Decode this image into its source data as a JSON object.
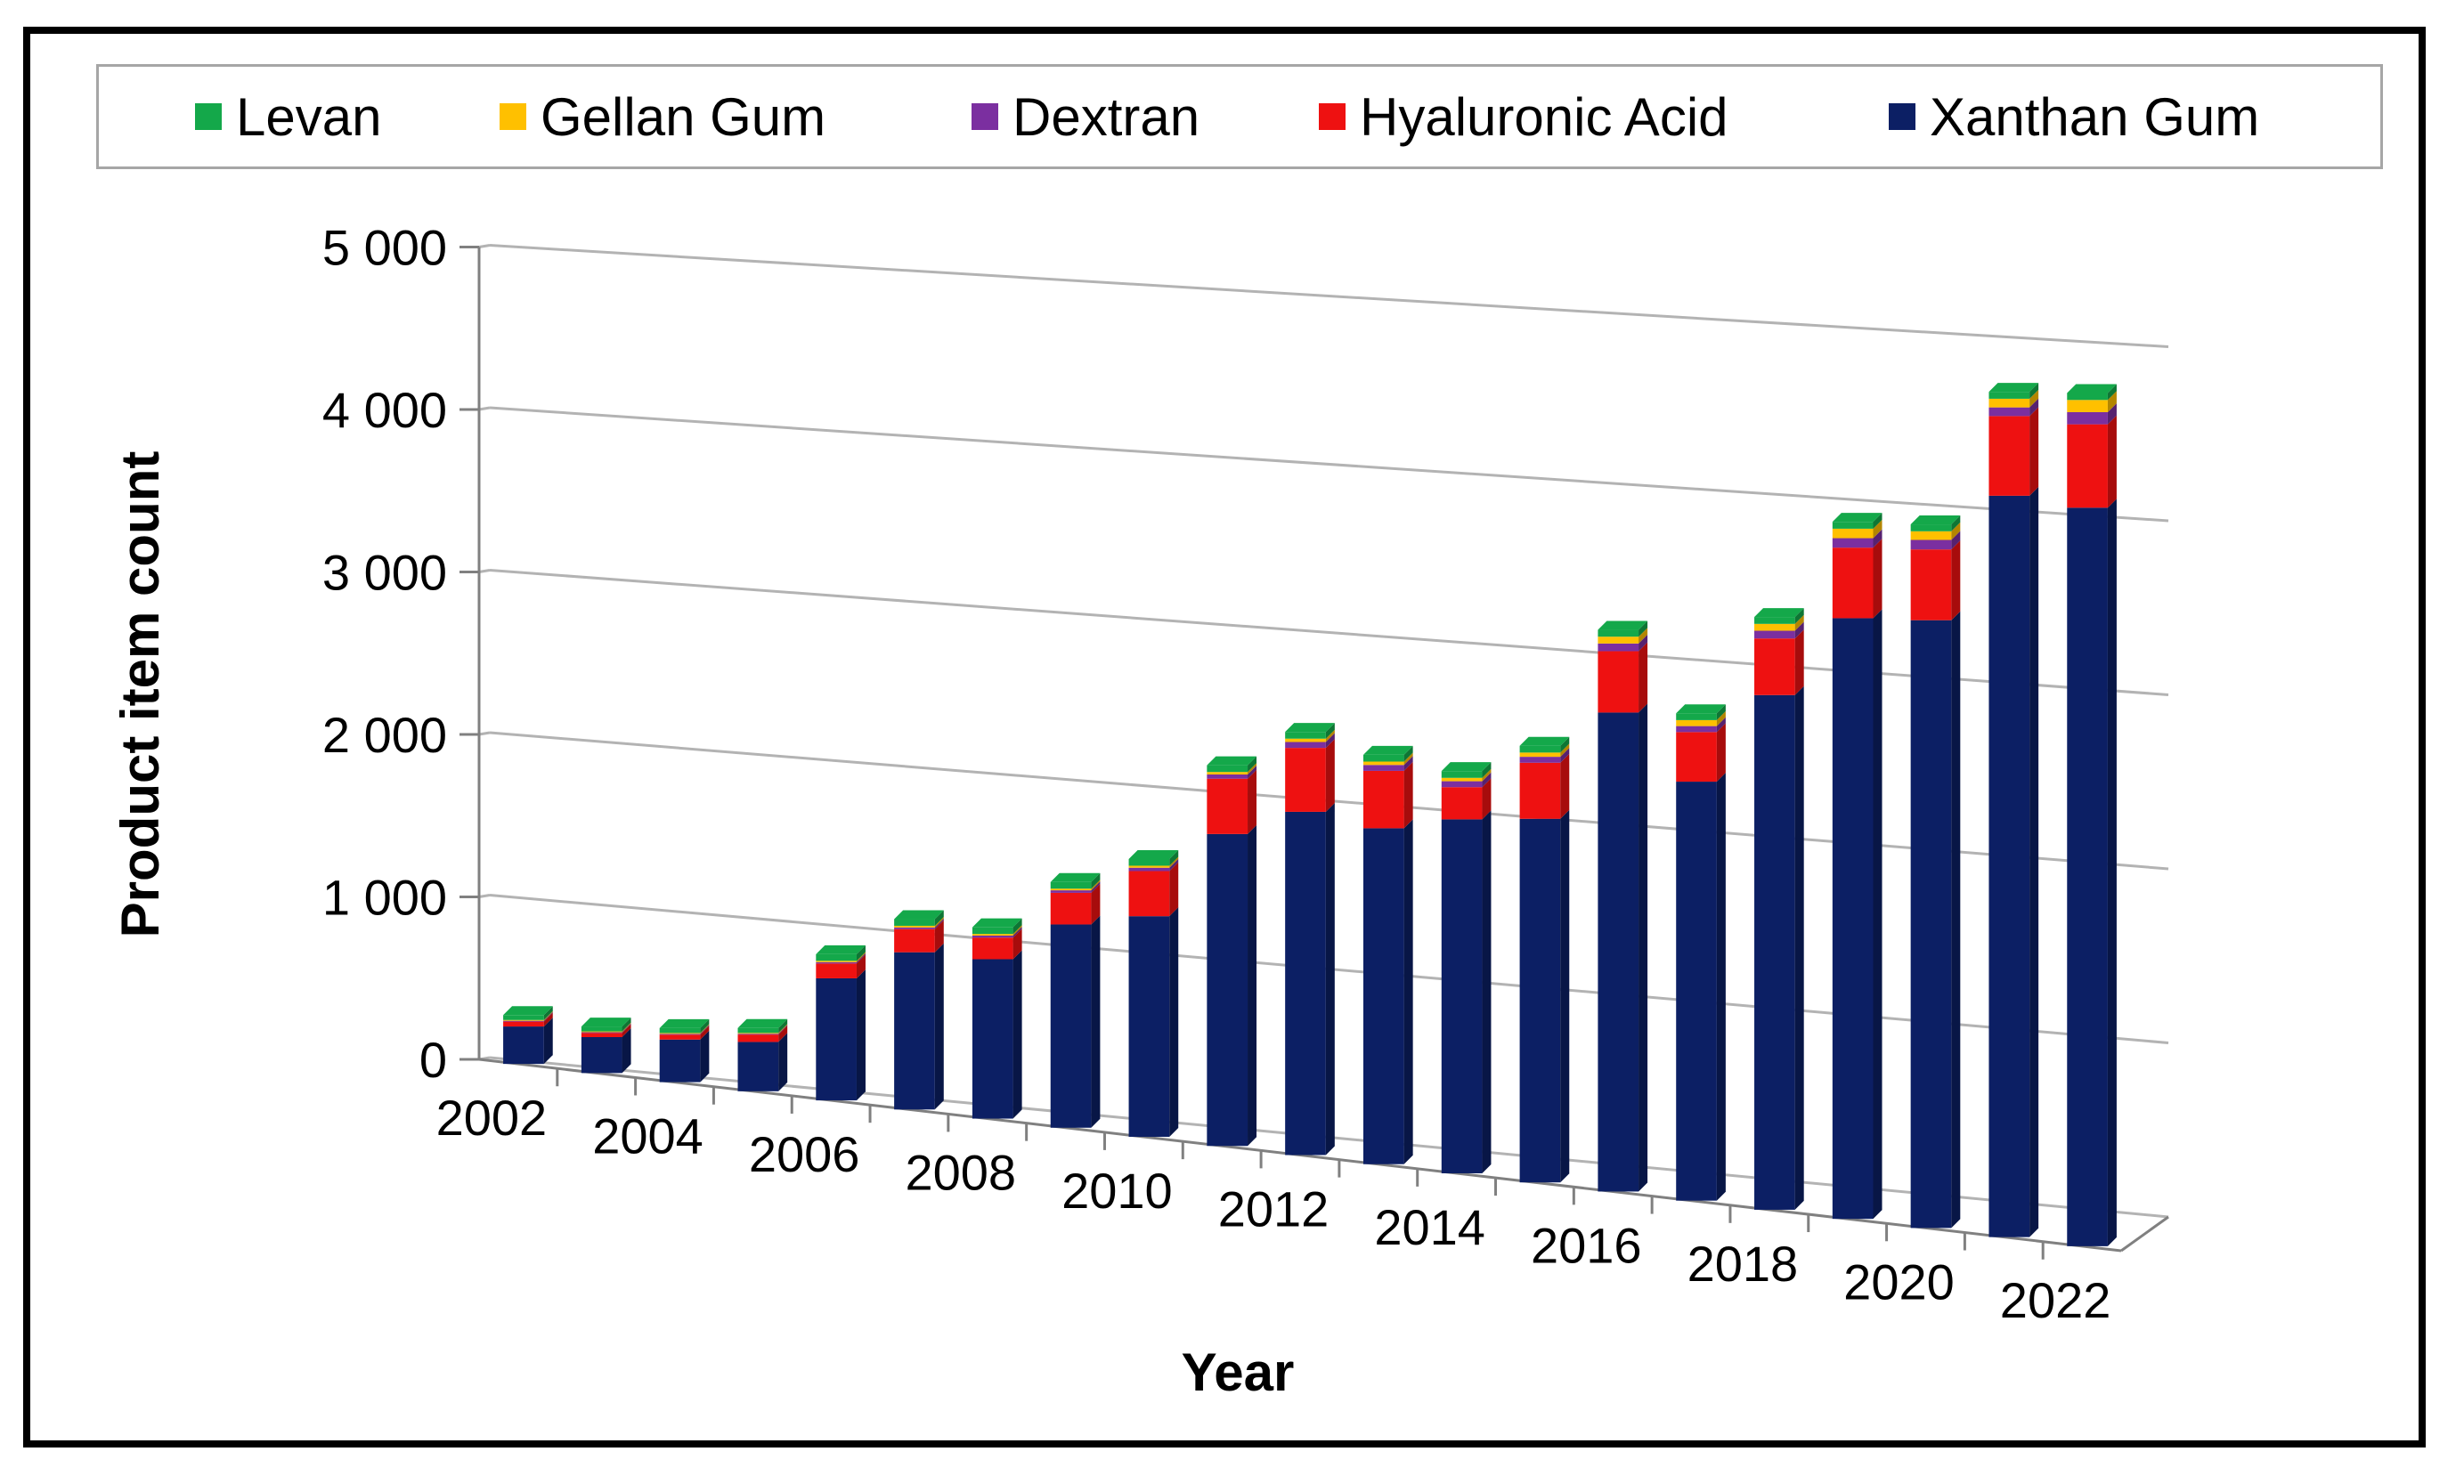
{
  "chart_data": {
    "type": "bar",
    "stacked": true,
    "style": "3d-perspective",
    "xlabel": "Year",
    "ylabel": "Product item count",
    "ylim": [
      0,
      5000
    ],
    "y_ticks": [
      0,
      1000,
      2000,
      3000,
      4000,
      5000
    ],
    "y_tick_labels": [
      "0",
      "1 000",
      "2 000",
      "3 000",
      "4 000",
      "5 000"
    ],
    "categories": [
      "2002",
      "2003",
      "2004",
      "2005",
      "2006",
      "2007",
      "2008",
      "2009",
      "2010",
      "2011",
      "2012",
      "2013",
      "2014",
      "2015",
      "2016",
      "2017",
      "2018",
      "2019",
      "2020",
      "2021",
      "2022"
    ],
    "x_tick_labels": [
      "2002",
      "2004",
      "2006",
      "2008",
      "2010",
      "2012",
      "2014",
      "2016",
      "2018",
      "2020",
      "2022"
    ],
    "legend_position": "top",
    "legend_order": [
      "Levan",
      "Gellan Gum",
      "Dextran",
      "Hyaluronic Acid",
      "Xanthan Gum"
    ],
    "series": [
      {
        "name": "Xanthan Gum",
        "color": "#0c1f64",
        "values": [
          230,
          220,
          260,
          300,
          740,
          950,
          960,
          1220,
          1320,
          1860,
          2040,
          1990,
          2090,
          2140,
          2810,
          2450,
          3000,
          3490,
          3520,
          4280,
          4250
        ]
      },
      {
        "name": "Hyaluronic Acid",
        "color": "#ee1111",
        "values": [
          30,
          25,
          30,
          45,
          90,
          140,
          130,
          190,
          270,
          330,
          380,
          340,
          190,
          330,
          360,
          290,
          330,
          410,
          410,
          460,
          480
        ]
      },
      {
        "name": "Dextran",
        "color": "#7b2fa0",
        "values": [
          5,
          5,
          5,
          5,
          8,
          10,
          12,
          15,
          20,
          25,
          35,
          35,
          35,
          35,
          45,
          35,
          45,
          55,
          55,
          50,
          70
        ]
      },
      {
        "name": "Gellan Gum",
        "color": "#ffc000",
        "values": [
          5,
          5,
          5,
          5,
          8,
          10,
          10,
          10,
          12,
          15,
          20,
          20,
          20,
          25,
          40,
          35,
          40,
          55,
          50,
          50,
          70
        ]
      },
      {
        "name": "Levan",
        "color": "#14a84a",
        "values": [
          30,
          30,
          30,
          30,
          40,
          40,
          40,
          40,
          40,
          40,
          40,
          40,
          40,
          40,
          40,
          40,
          40,
          40,
          40,
          40,
          40
        ]
      }
    ]
  }
}
